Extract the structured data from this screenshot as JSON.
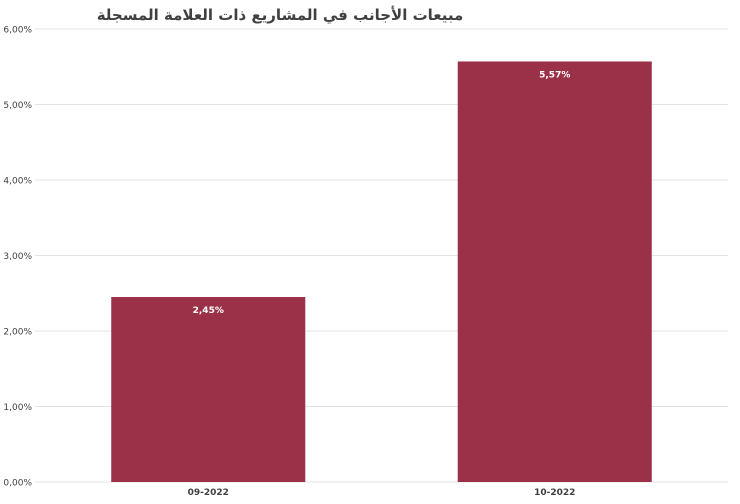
{
  "chart_data": {
    "type": "bar",
    "title": "مبيعات الأجانب في المشاريع ذات العلامة المسجلة",
    "categories": [
      "09-2022",
      "10-2022"
    ],
    "values": [
      2.45,
      5.57
    ],
    "data_labels": [
      "2,45%",
      "5,57%"
    ],
    "y_ticks": [
      "0,00%",
      "1,00%",
      "2,00%",
      "3,00%",
      "4,00%",
      "5,00%",
      "6,00%"
    ],
    "ylim": [
      0,
      6
    ],
    "grid": true,
    "legend": "none",
    "xlabel": "",
    "ylabel": ""
  },
  "colors": {
    "bar": "#9b3148",
    "grid": "#e3e3e3",
    "axis_text": "#404040",
    "data_label": "#ffffff"
  }
}
